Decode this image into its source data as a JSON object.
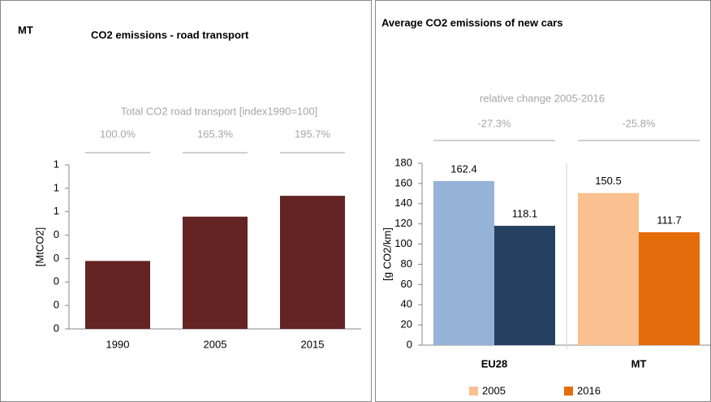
{
  "chart_data": [
    {
      "type": "bar",
      "label": "MT",
      "title": "CO2 emissions - road transport",
      "subtitle": "Total CO2 road  transport [index1990=100]",
      "annotations": [
        "100.0%",
        "165.3%",
        "195.7%"
      ],
      "y_label": "[MtCO2]",
      "categories": [
        "1990",
        "2005",
        "2015"
      ],
      "values": [
        0.29,
        0.479,
        0.568
      ],
      "color": "#632423",
      "ylim": [
        0,
        0.7
      ],
      "yticks": [
        {
          "value": 0,
          "label": "0"
        },
        {
          "value": 0.1,
          "label": "0"
        },
        {
          "value": 0.2,
          "label": "0"
        },
        {
          "value": 0.3,
          "label": "0"
        },
        {
          "value": 0.4,
          "label": "0"
        },
        {
          "value": 0.5,
          "label": "1"
        },
        {
          "value": 0.6,
          "label": "1"
        },
        {
          "value": 0.7,
          "label": "1"
        }
      ]
    },
    {
      "type": "grouped_bar",
      "title": "Average CO2 emissions of new cars",
      "subtitle": "relative change 2005-2016",
      "annotations": [
        "-27.3%",
        "-25.8%"
      ],
      "y_label": "[g CO2/km]",
      "categories": [
        "EU28",
        "MT"
      ],
      "series": [
        {
          "name": "2005",
          "color": "#fac090",
          "point_colors": [
            "#95b3d7",
            "#fac090"
          ],
          "values": [
            162.4,
            150.5
          ]
        },
        {
          "name": "2016",
          "color": "#e46c0a",
          "point_colors": [
            "#254061",
            "#e46c0a"
          ],
          "values": [
            118.1,
            111.7
          ]
        }
      ],
      "ylim": [
        0,
        180
      ],
      "yticks": [
        0,
        20,
        40,
        60,
        80,
        100,
        120,
        140,
        160,
        180
      ]
    }
  ]
}
